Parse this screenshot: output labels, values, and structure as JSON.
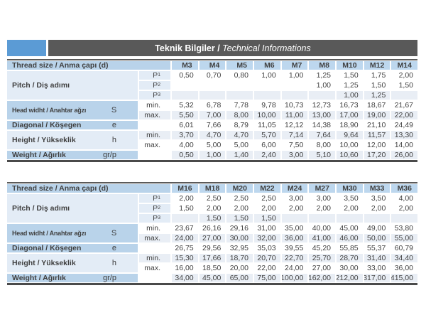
{
  "title": {
    "main": "Teknik Bilgiler",
    "sep": " / ",
    "sub": "Technical Informations"
  },
  "colors": {
    "accent_square": "#5b9bd5",
    "title_bar": "#595959",
    "header_cell": "#bdd7ee",
    "label_medium": "#b9d3ea",
    "label_light": "#e3ecf6",
    "stripe": "#e9eef5",
    "white": "#ffffff",
    "text": "#404040"
  },
  "row_labels": {
    "thread": "Thread size / Anma çapı (d)",
    "pitch": "Pitch / Diş adımı",
    "pitch_symbol": "P",
    "pitch_subscripts": [
      "1",
      "2",
      "3"
    ],
    "head_width": "Head widht / Anahtar ağzı",
    "head_symbol": "S",
    "diagonal": "Diagonal / Köşegen",
    "diagonal_symbol": "e",
    "height": "Height / Yükseklik",
    "height_symbol": "h",
    "weight": "Weight / Ağırlık",
    "weight_symbol": "gr/p",
    "min": "min.",
    "max": "max."
  },
  "tables": [
    {
      "columns": [
        "M3",
        "M4",
        "M5",
        "M6",
        "M7",
        "M8",
        "M10",
        "M12",
        "M14"
      ],
      "rows": {
        "p1": [
          "0,50",
          "0,70",
          "0,80",
          "1,00",
          "1,00",
          "1,25",
          "1,50",
          "1,75",
          "2,00"
        ],
        "p2": [
          "",
          "",
          "",
          "",
          "",
          "1,00",
          "1,25",
          "1,50",
          "1,50"
        ],
        "p3": [
          "",
          "",
          "",
          "",
          "",
          "",
          "1,00",
          "1,25",
          ""
        ],
        "head_min": [
          "5,32",
          "6,78",
          "7,78",
          "9,78",
          "10,73",
          "12,73",
          "16,73",
          "18,67",
          "21,67"
        ],
        "head_max": [
          "5,50",
          "7,00",
          "8,00",
          "10,00",
          "11,00",
          "13,00",
          "17,00",
          "19,00",
          "22,00"
        ],
        "diagonal": [
          "6,01",
          "7,66",
          "8,79",
          "11,05",
          "12,12",
          "14,38",
          "18,90",
          "21,10",
          "24,49"
        ],
        "height_min": [
          "3,70",
          "4,70",
          "4,70",
          "5,70",
          "7,14",
          "7,64",
          "9,64",
          "11,57",
          "13,30"
        ],
        "height_max": [
          "4,00",
          "5,00",
          "5,00",
          "6,00",
          "7,50",
          "8,00",
          "10,00",
          "12,00",
          "14,00"
        ],
        "weight": [
          "0,50",
          "1,00",
          "1,40",
          "2,40",
          "3,00",
          "5,10",
          "10,60",
          "17,20",
          "26,00"
        ]
      }
    },
    {
      "columns": [
        "M16",
        "M18",
        "M20",
        "M22",
        "M24",
        "M27",
        "M30",
        "M33",
        "M36"
      ],
      "rows": {
        "p1": [
          "2,00",
          "2,50",
          "2,50",
          "2,50",
          "3,00",
          "3,00",
          "3,50",
          "3,50",
          "4,00"
        ],
        "p2": [
          "1,50",
          "2,00",
          "2,00",
          "2,00",
          "2,00",
          "2,00",
          "2,00",
          "2,00",
          "2,00"
        ],
        "p3": [
          "",
          "1,50",
          "1,50",
          "1,50",
          "",
          "",
          "",
          "",
          ""
        ],
        "head_min": [
          "23,67",
          "26,16",
          "29,16",
          "31,00",
          "35,00",
          "40,00",
          "45,00",
          "49,00",
          "53,80"
        ],
        "head_max": [
          "24,00",
          "27,00",
          "30,00",
          "32,00",
          "36,00",
          "41,00",
          "46,00",
          "50,00",
          "55,00"
        ],
        "diagonal": [
          "26,75",
          "29,56",
          "32,95",
          "35,03",
          "39,55",
          "45,20",
          "55,85",
          "55,37",
          "60,79"
        ],
        "height_min": [
          "15,30",
          "17,66",
          "18,70",
          "20,70",
          "22,70",
          "25,70",
          "28,70",
          "31,40",
          "34,40"
        ],
        "height_max": [
          "16,00",
          "18,50",
          "20,00",
          "22,00",
          "24,00",
          "27,00",
          "30,00",
          "33,00",
          "36,00"
        ],
        "weight": [
          "34,00",
          "45,00",
          "65,00",
          "75,00",
          "100,00",
          "162,00",
          "212,00",
          "317,00",
          "415,00"
        ]
      }
    }
  ]
}
